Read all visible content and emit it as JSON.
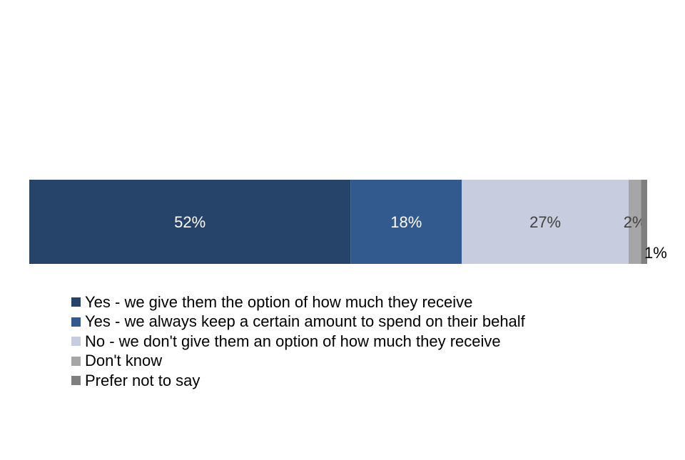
{
  "chart_data": {
    "type": "bar",
    "orientation": "horizontal",
    "stacked": true,
    "categories": [
      ""
    ],
    "series": [
      {
        "name": "Yes - we give them the option of how much they receive",
        "values": [
          52
        ],
        "label": "52%",
        "color": "#264469"
      },
      {
        "name": "Yes - we always keep a certain amount to spend on their behalf",
        "values": [
          18
        ],
        "label": "18%",
        "color": "#335A8E"
      },
      {
        "name": "No - we don't give them an option of how much they receive",
        "values": [
          27
        ],
        "label": "27%",
        "color": "#C8CCDF"
      },
      {
        "name": "Don't know",
        "values": [
          2
        ],
        "label": "2%",
        "color": "#A6A6A6"
      },
      {
        "name": "Prefer not to say",
        "values": [
          1
        ],
        "label": "1%",
        "color": "#7F7F7F"
      }
    ],
    "xlim": [
      0,
      100
    ],
    "grid": false,
    "legend_position": "bottom"
  }
}
